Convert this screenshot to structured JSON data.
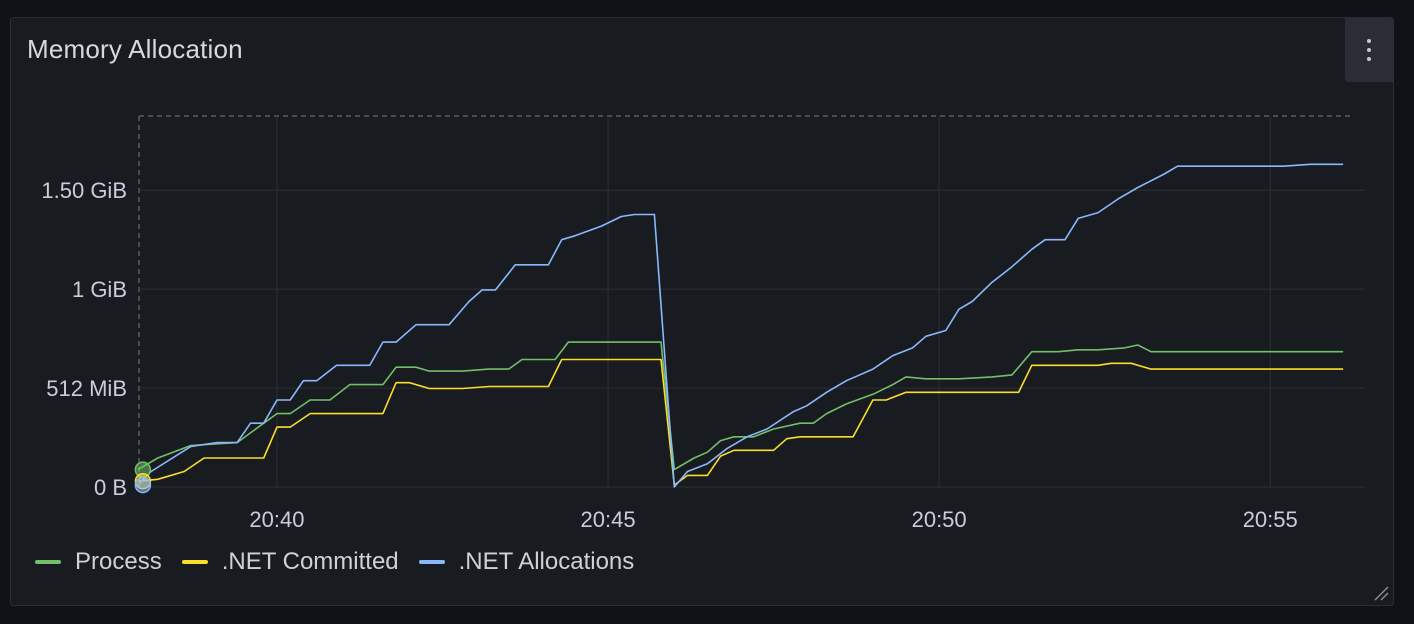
{
  "panel": {
    "title": "Memory Allocation",
    "menu_icon": "more-vertical-icon"
  },
  "colors": {
    "background": "#181b1f",
    "grid": "#2c2f35",
    "axis_text": "#ccccdc",
    "process": "#73bf69",
    ".NET Committed": "#fade2a",
    ".NET Allocations": "#8ab8ff"
  },
  "chart_data": {
    "type": "line",
    "title": "Memory Allocation",
    "xlabel": "",
    "ylabel": "",
    "x_unit": "time (HH:MM)",
    "y_unit": "MiB",
    "xlim": [
      "20:37:55",
      "20:56:15"
    ],
    "ylim": [
      0,
      1920
    ],
    "grid": true,
    "legend_position": "bottom-left",
    "y_ticks": [
      {
        "value": 0,
        "label": "0 B"
      },
      {
        "value": 512,
        "label": "512 MiB"
      },
      {
        "value": 1024,
        "label": "1 GiB"
      },
      {
        "value": 1536,
        "label": "1.50 GiB"
      }
    ],
    "x_ticks": [
      {
        "value": "20:40:00",
        "label": "20:40"
      },
      {
        "value": "20:45:00",
        "label": "20:45"
      },
      {
        "value": "20:50:00",
        "label": "20:50"
      },
      {
        "value": "20:55:00",
        "label": "20:55"
      }
    ],
    "series": [
      {
        "name": "Process",
        "color": "#73bf69",
        "points": [
          [
            "20:37:54",
            90
          ],
          [
            "20:38:12",
            150
          ],
          [
            "20:38:42",
            215
          ],
          [
            "20:39:24",
            230
          ],
          [
            "20:39:48",
            330
          ],
          [
            "20:40:00",
            380
          ],
          [
            "20:40:12",
            380
          ],
          [
            "20:40:30",
            450
          ],
          [
            "20:40:48",
            450
          ],
          [
            "20:41:06",
            530
          ],
          [
            "20:41:36",
            530
          ],
          [
            "20:41:48",
            620
          ],
          [
            "20:42:06",
            620
          ],
          [
            "20:42:18",
            600
          ],
          [
            "20:42:48",
            600
          ],
          [
            "20:43:12",
            610
          ],
          [
            "20:43:30",
            610
          ],
          [
            "20:43:42",
            660
          ],
          [
            "20:44:12",
            660
          ],
          [
            "20:44:24",
            750
          ],
          [
            "20:44:54",
            750
          ],
          [
            "20:45:24",
            750
          ],
          [
            "20:45:48",
            750
          ],
          [
            "20:46:00",
            90
          ],
          [
            "20:46:18",
            150
          ],
          [
            "20:46:30",
            180
          ],
          [
            "20:46:42",
            240
          ],
          [
            "20:46:54",
            260
          ],
          [
            "20:47:12",
            260
          ],
          [
            "20:47:30",
            300
          ],
          [
            "20:47:54",
            330
          ],
          [
            "20:48:06",
            330
          ],
          [
            "20:48:18",
            380
          ],
          [
            "20:48:36",
            430
          ],
          [
            "20:49:00",
            480
          ],
          [
            "20:49:18",
            530
          ],
          [
            "20:49:30",
            570
          ],
          [
            "20:49:48",
            560
          ],
          [
            "20:50:18",
            560
          ],
          [
            "20:50:48",
            570
          ],
          [
            "20:51:06",
            580
          ],
          [
            "20:51:24",
            700
          ],
          [
            "20:51:48",
            700
          ],
          [
            "20:52:06",
            710
          ],
          [
            "20:52:24",
            710
          ],
          [
            "20:52:48",
            720
          ],
          [
            "20:53:00",
            735
          ],
          [
            "20:53:12",
            700
          ],
          [
            "20:53:36",
            700
          ],
          [
            "20:54:30",
            700
          ],
          [
            "20:55:30",
            700
          ],
          [
            "20:56:06",
            700
          ]
        ]
      },
      {
        "name": ".NET Committed",
        "color": "#fade2a",
        "points": [
          [
            "20:37:54",
            30
          ],
          [
            "20:38:12",
            40
          ],
          [
            "20:38:36",
            80
          ],
          [
            "20:38:54",
            150
          ],
          [
            "20:39:48",
            150
          ],
          [
            "20:40:00",
            310
          ],
          [
            "20:40:12",
            310
          ],
          [
            "20:40:30",
            380
          ],
          [
            "20:41:36",
            380
          ],
          [
            "20:41:48",
            540
          ],
          [
            "20:42:00",
            540
          ],
          [
            "20:42:18",
            510
          ],
          [
            "20:42:48",
            510
          ],
          [
            "20:43:12",
            520
          ],
          [
            "20:43:54",
            520
          ],
          [
            "20:44:06",
            520
          ],
          [
            "20:44:18",
            660
          ],
          [
            "20:44:54",
            660
          ],
          [
            "20:45:48",
            660
          ],
          [
            "20:46:00",
            10
          ],
          [
            "20:46:12",
            60
          ],
          [
            "20:46:30",
            60
          ],
          [
            "20:46:42",
            160
          ],
          [
            "20:46:54",
            190
          ],
          [
            "20:47:30",
            190
          ],
          [
            "20:47:42",
            250
          ],
          [
            "20:47:54",
            260
          ],
          [
            "20:48:42",
            260
          ],
          [
            "20:49:00",
            450
          ],
          [
            "20:49:12",
            450
          ],
          [
            "20:49:30",
            490
          ],
          [
            "20:50:00",
            490
          ],
          [
            "20:51:00",
            490
          ],
          [
            "20:51:12",
            490
          ],
          [
            "20:51:24",
            630
          ],
          [
            "20:52:00",
            630
          ],
          [
            "20:52:24",
            630
          ],
          [
            "20:52:36",
            640
          ],
          [
            "20:52:54",
            640
          ],
          [
            "20:53:12",
            610
          ],
          [
            "20:54:00",
            610
          ],
          [
            "20:55:00",
            610
          ],
          [
            "20:56:06",
            610
          ]
        ]
      },
      {
        "name": ".NET Allocations",
        "color": "#8ab8ff",
        "points": [
          [
            "20:37:54",
            10
          ],
          [
            "20:38:06",
            80
          ],
          [
            "20:38:42",
            210
          ],
          [
            "20:39:06",
            230
          ],
          [
            "20:39:24",
            230
          ],
          [
            "20:39:36",
            330
          ],
          [
            "20:39:48",
            330
          ],
          [
            "20:40:00",
            450
          ],
          [
            "20:40:12",
            450
          ],
          [
            "20:40:24",
            550
          ],
          [
            "20:40:36",
            550
          ],
          [
            "20:40:54",
            630
          ],
          [
            "20:41:24",
            630
          ],
          [
            "20:41:36",
            750
          ],
          [
            "20:41:48",
            750
          ],
          [
            "20:42:06",
            840
          ],
          [
            "20:42:24",
            840
          ],
          [
            "20:42:36",
            840
          ],
          [
            "20:42:54",
            960
          ],
          [
            "20:43:06",
            1020
          ],
          [
            "20:43:18",
            1020
          ],
          [
            "20:43:36",
            1150
          ],
          [
            "20:43:54",
            1150
          ],
          [
            "20:44:06",
            1150
          ],
          [
            "20:44:18",
            1280
          ],
          [
            "20:44:30",
            1300
          ],
          [
            "20:44:54",
            1350
          ],
          [
            "20:45:12",
            1400
          ],
          [
            "20:45:24",
            1410
          ],
          [
            "20:45:42",
            1410
          ],
          [
            "20:46:00",
            0
          ],
          [
            "20:46:12",
            80
          ],
          [
            "20:46:30",
            120
          ],
          [
            "20:46:48",
            200
          ],
          [
            "20:47:06",
            260
          ],
          [
            "20:47:24",
            300
          ],
          [
            "20:47:48",
            390
          ],
          [
            "20:48:00",
            420
          ],
          [
            "20:48:18",
            490
          ],
          [
            "20:48:36",
            550
          ],
          [
            "20:49:00",
            610
          ],
          [
            "20:49:18",
            680
          ],
          [
            "20:49:36",
            720
          ],
          [
            "20:49:48",
            780
          ],
          [
            "20:50:06",
            810
          ],
          [
            "20:50:18",
            920
          ],
          [
            "20:50:30",
            960
          ],
          [
            "20:50:48",
            1060
          ],
          [
            "20:51:06",
            1140
          ],
          [
            "20:51:24",
            1230
          ],
          [
            "20:51:36",
            1280
          ],
          [
            "20:51:54",
            1280
          ],
          [
            "20:52:06",
            1390
          ],
          [
            "20:52:24",
            1420
          ],
          [
            "20:52:42",
            1490
          ],
          [
            "20:53:00",
            1550
          ],
          [
            "20:53:24",
            1620
          ],
          [
            "20:53:36",
            1660
          ],
          [
            "20:54:12",
            1660
          ],
          [
            "20:54:48",
            1660
          ],
          [
            "20:55:12",
            1660
          ],
          [
            "20:55:36",
            1670
          ],
          [
            "20:56:06",
            1670
          ]
        ]
      }
    ]
  },
  "legend": [
    {
      "label": "Process",
      "color": "#73bf69"
    },
    {
      "label": ".NET Committed",
      "color": "#fade2a"
    },
    {
      "label": ".NET Allocations",
      "color": "#8ab8ff"
    }
  ]
}
